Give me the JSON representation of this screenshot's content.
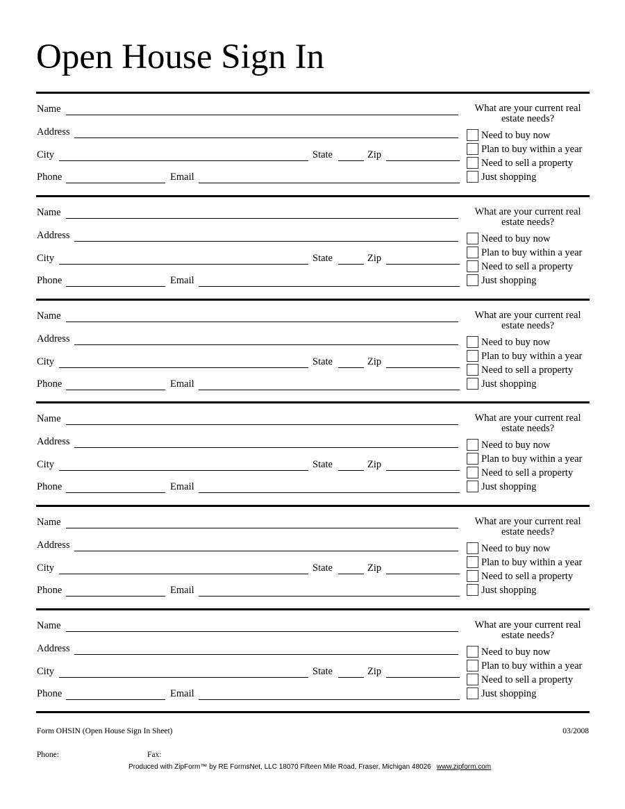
{
  "title": "Open House Sign In",
  "labels": {
    "name": "Name",
    "address": "Address",
    "city": "City",
    "state": "State",
    "zip": "Zip",
    "phone": "Phone",
    "email": "Email"
  },
  "question": "What are your current real estate needs?",
  "options": [
    "Need to buy now",
    "Plan to buy within a year",
    "Need to sell a property",
    "Just shopping"
  ],
  "section_count": 6,
  "footer": {
    "form_name": "Form OHSIN (Open House Sign In Sheet)",
    "date": "03/2008",
    "phone_label": "Phone:",
    "fax_label": "Fax:",
    "produced": "Produced with ZipForm™ by RE FormsNet, LLC 18070 Fifteen Mile Road, Fraser, Michigan 48026",
    "website": "www.zipform.com"
  }
}
